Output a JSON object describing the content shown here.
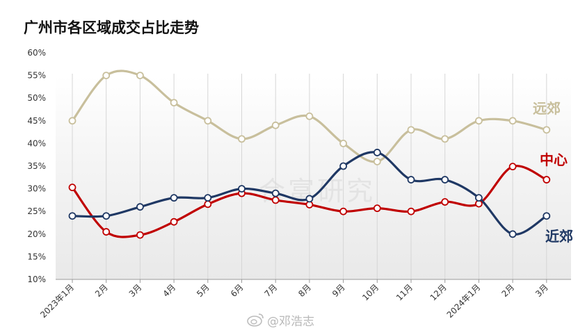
{
  "chart_data": {
    "type": "line",
    "title": "广州市各区域成交占比走势",
    "categories": [
      "2023年1月",
      "2月",
      "3月",
      "4月",
      "5月",
      "6月",
      "7月",
      "8月",
      "9月",
      "10月",
      "11月",
      "12月",
      "2024年1月",
      "2月",
      "3月"
    ],
    "y_ticks": [
      "10%",
      "15%",
      "20%",
      "25%",
      "30%",
      "35%",
      "40%",
      "45%",
      "50%",
      "55%",
      "60%"
    ],
    "ylim": [
      10,
      60
    ],
    "grid": "vertical",
    "series": [
      {
        "name": "远郊",
        "color": "#c8bf9c",
        "values": [
          45,
          55,
          55,
          49,
          45,
          41,
          44,
          46,
          40,
          36,
          43,
          41,
          45,
          45,
          43
        ]
      },
      {
        "name": "中心",
        "color": "#c00000",
        "values": [
          30.3,
          20.5,
          19.8,
          22.7,
          26.6,
          29,
          27.5,
          26.5,
          25,
          25.7,
          25,
          27.1,
          26.7,
          34.9,
          32
        ]
      },
      {
        "name": "近郊",
        "color": "#1f3864",
        "values": [
          24,
          24,
          26,
          28,
          28,
          30,
          29,
          27.8,
          35,
          38,
          32,
          32,
          28,
          20,
          24
        ]
      }
    ]
  },
  "watermark": "合富研究",
  "weibo_handle": "@邓浩志"
}
